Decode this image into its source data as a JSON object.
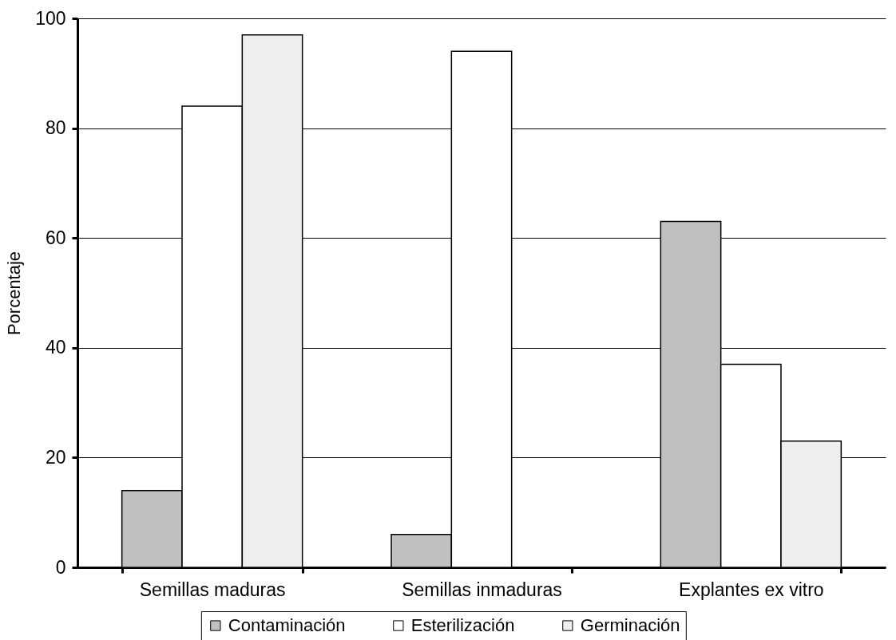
{
  "chart_data": {
    "type": "bar",
    "ylabel": "Porcentaje",
    "categories": [
      "Semillas maduras",
      "Semillas inmaduras",
      "Explantes ex vitro"
    ],
    "series": [
      {
        "name": "Contaminación",
        "color": "#c0c0c0",
        "values": [
          14,
          6,
          63
        ]
      },
      {
        "name": "Esterilización",
        "color": "#ffffff",
        "values": [
          84,
          94,
          37
        ]
      },
      {
        "name": "Germinación",
        "color": "#eeeeee",
        "values": [
          97,
          null,
          23
        ]
      }
    ],
    "ylim": [
      0,
      100
    ],
    "yticks": [
      0,
      20,
      40,
      60,
      80,
      100
    ],
    "grid": "y",
    "legend": "bottom"
  }
}
